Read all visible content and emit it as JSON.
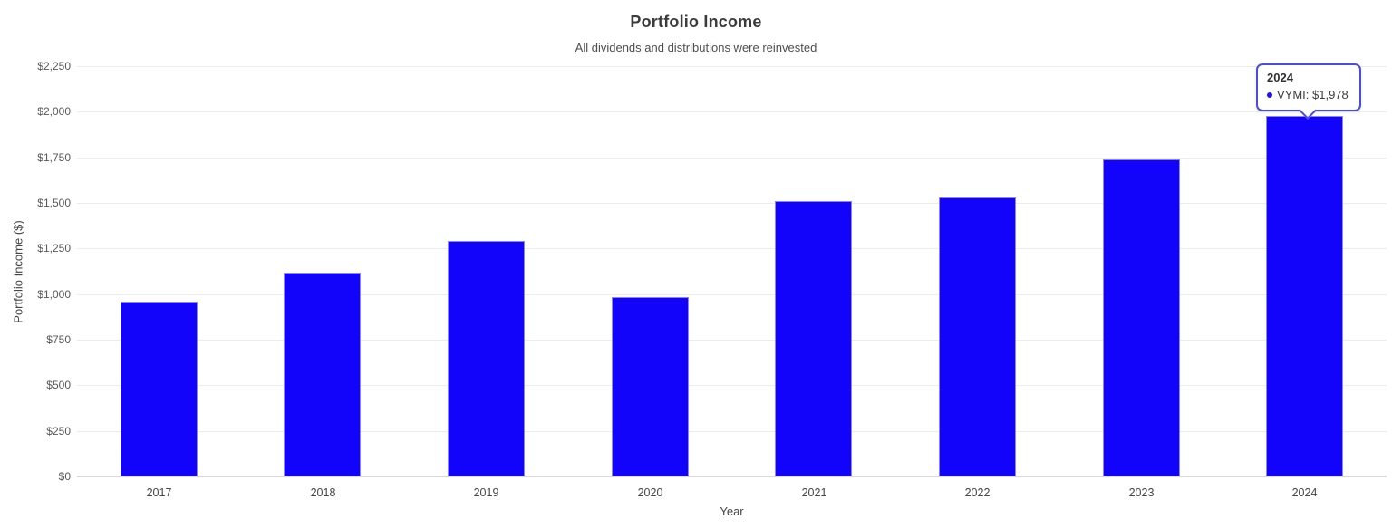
{
  "chart_data": {
    "type": "bar",
    "title": "Portfolio Income",
    "subtitle": "All dividends and distributions were reinvested",
    "xlabel": "Year",
    "ylabel": "Portfolio Income ($)",
    "categories": [
      "2017",
      "2018",
      "2019",
      "2020",
      "2021",
      "2022",
      "2023",
      "2024"
    ],
    "series": [
      {
        "name": "VYMI",
        "values": [
          958,
          1117,
          1292,
          983,
          1508,
          1530,
          1740,
          1978
        ]
      }
    ],
    "ylim": [
      0,
      2250
    ],
    "ytick_step": 250,
    "ytick_labels": [
      "$0",
      "$250",
      "$500",
      "$750",
      "$1,000",
      "$1,250",
      "$1,500",
      "$1,750",
      "$2,000",
      "$2,250"
    ],
    "grid": "horizontal",
    "legend": "none"
  },
  "tooltip": {
    "title": "2024",
    "series": "VYMI",
    "value": 1978,
    "value_text": "$1,978",
    "label": "VYMI: $1,978"
  },
  "colors": {
    "bar_fill": "#1203fb",
    "bar_border": "#8d85e6",
    "tooltip_border": "#4a4fd4",
    "tooltip_dot": "#2213e8",
    "grid_line": "#ececec",
    "axis_line": "#d9d9d9"
  }
}
